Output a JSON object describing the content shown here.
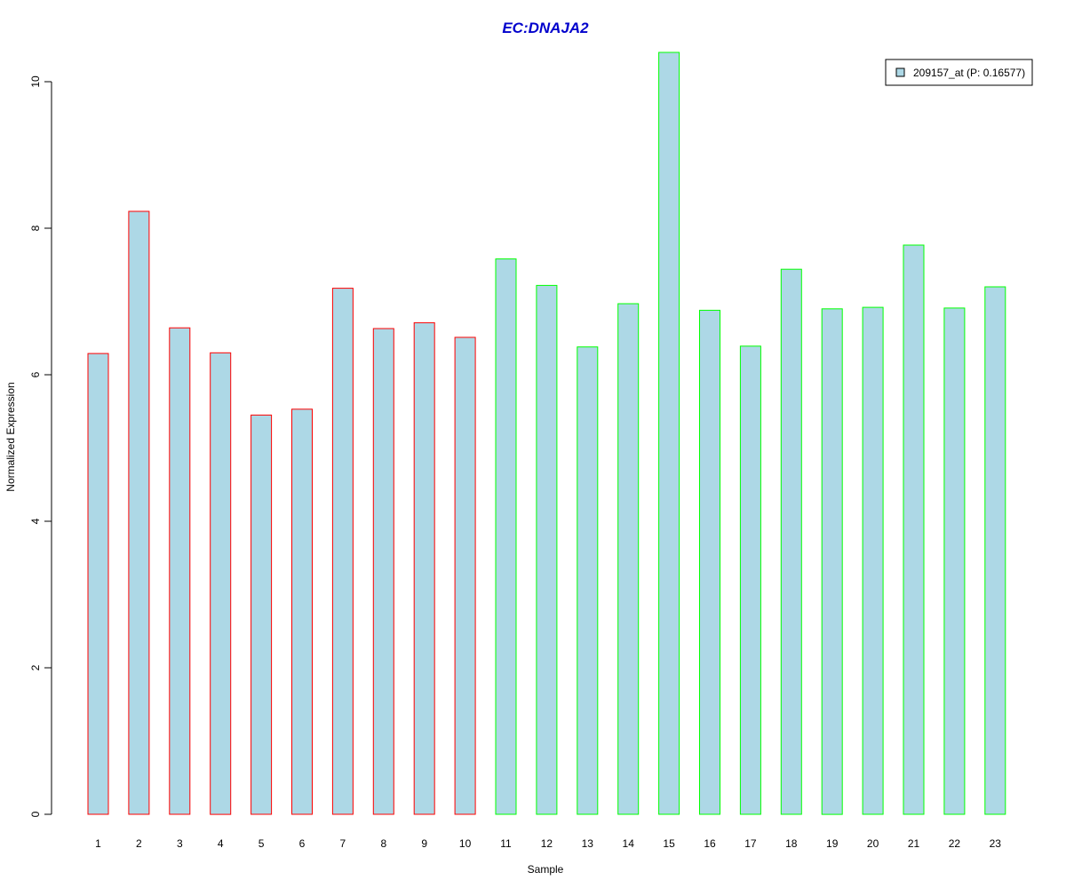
{
  "chart_data": {
    "type": "bar",
    "title": "EC:DNAJA2",
    "xlabel": "Sample",
    "ylabel": "Normalized Expression",
    "categories": [
      "1",
      "2",
      "3",
      "4",
      "5",
      "6",
      "7",
      "8",
      "9",
      "10",
      "11",
      "12",
      "13",
      "14",
      "15",
      "16",
      "17",
      "18",
      "19",
      "20",
      "21",
      "22",
      "23"
    ],
    "series": [
      {
        "name": "209157_at (P: 0.16577)",
        "values": [
          6.29,
          8.23,
          6.64,
          6.3,
          5.45,
          5.53,
          7.18,
          6.63,
          6.71,
          6.51,
          7.58,
          7.22,
          6.38,
          6.97,
          10.4,
          6.88,
          6.39,
          7.44,
          6.9,
          6.92,
          7.77,
          6.91,
          7.2
        ]
      }
    ],
    "groups": [
      "a",
      "a",
      "a",
      "a",
      "a",
      "a",
      "a",
      "a",
      "a",
      "a",
      "b",
      "b",
      "b",
      "b",
      "b",
      "b",
      "b",
      "b",
      "b",
      "b",
      "b",
      "b",
      "b"
    ],
    "group_colors": {
      "a": "#ff0000",
      "b": "#00ff00"
    },
    "bar_fill": "#add8e6",
    "title_color": "#0000cc",
    "ylim": [
      0,
      10.4
    ],
    "yticks": [
      0,
      2,
      4,
      6,
      8,
      10
    ],
    "grid": false,
    "legend_position": "top-right"
  }
}
